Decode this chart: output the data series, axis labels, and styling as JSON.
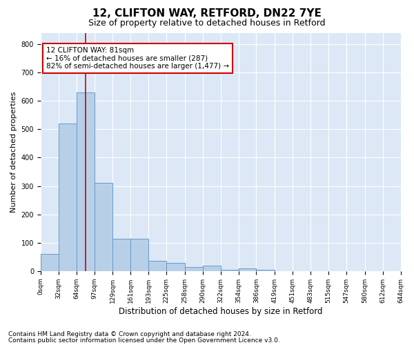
{
  "title1": "12, CLIFTON WAY, RETFORD, DN22 7YE",
  "title2": "Size of property relative to detached houses in Retford",
  "xlabel": "Distribution of detached houses by size in Retford",
  "ylabel": "Number of detached properties",
  "footnote1": "Contains HM Land Registry data © Crown copyright and database right 2024.",
  "footnote2": "Contains public sector information licensed under the Open Government Licence v3.0.",
  "bin_edges": [
    0,
    32,
    64,
    97,
    129,
    161,
    193,
    225,
    258,
    290,
    322,
    354,
    386,
    419,
    451,
    483,
    515,
    547,
    580,
    612,
    644
  ],
  "bar_heights": [
    60,
    520,
    630,
    310,
    115,
    115,
    35,
    30,
    15,
    20,
    5,
    10,
    5,
    0,
    0,
    0,
    0,
    0,
    0,
    0
  ],
  "bar_color": "#b8cfe8",
  "bar_edgecolor": "#6699cc",
  "property_size": 81,
  "property_line_color": "#cc0000",
  "annotation_text": "12 CLIFTON WAY: 81sqm\n← 16% of detached houses are smaller (287)\n82% of semi-detached houses are larger (1,477) →",
  "annotation_box_color": "#cc0000",
  "ylim": [
    0,
    840
  ],
  "yticks": [
    0,
    100,
    200,
    300,
    400,
    500,
    600,
    700,
    800
  ],
  "xlim": [
    0,
    644
  ],
  "plot_background_color": "#dce8f5",
  "grid_color": "#ffffff",
  "title1_fontsize": 11,
  "title2_fontsize": 9,
  "xlabel_fontsize": 8.5,
  "ylabel_fontsize": 8,
  "tick_fontsize": 7,
  "annotation_fontsize": 7.5,
  "footnote_fontsize": 6.5
}
